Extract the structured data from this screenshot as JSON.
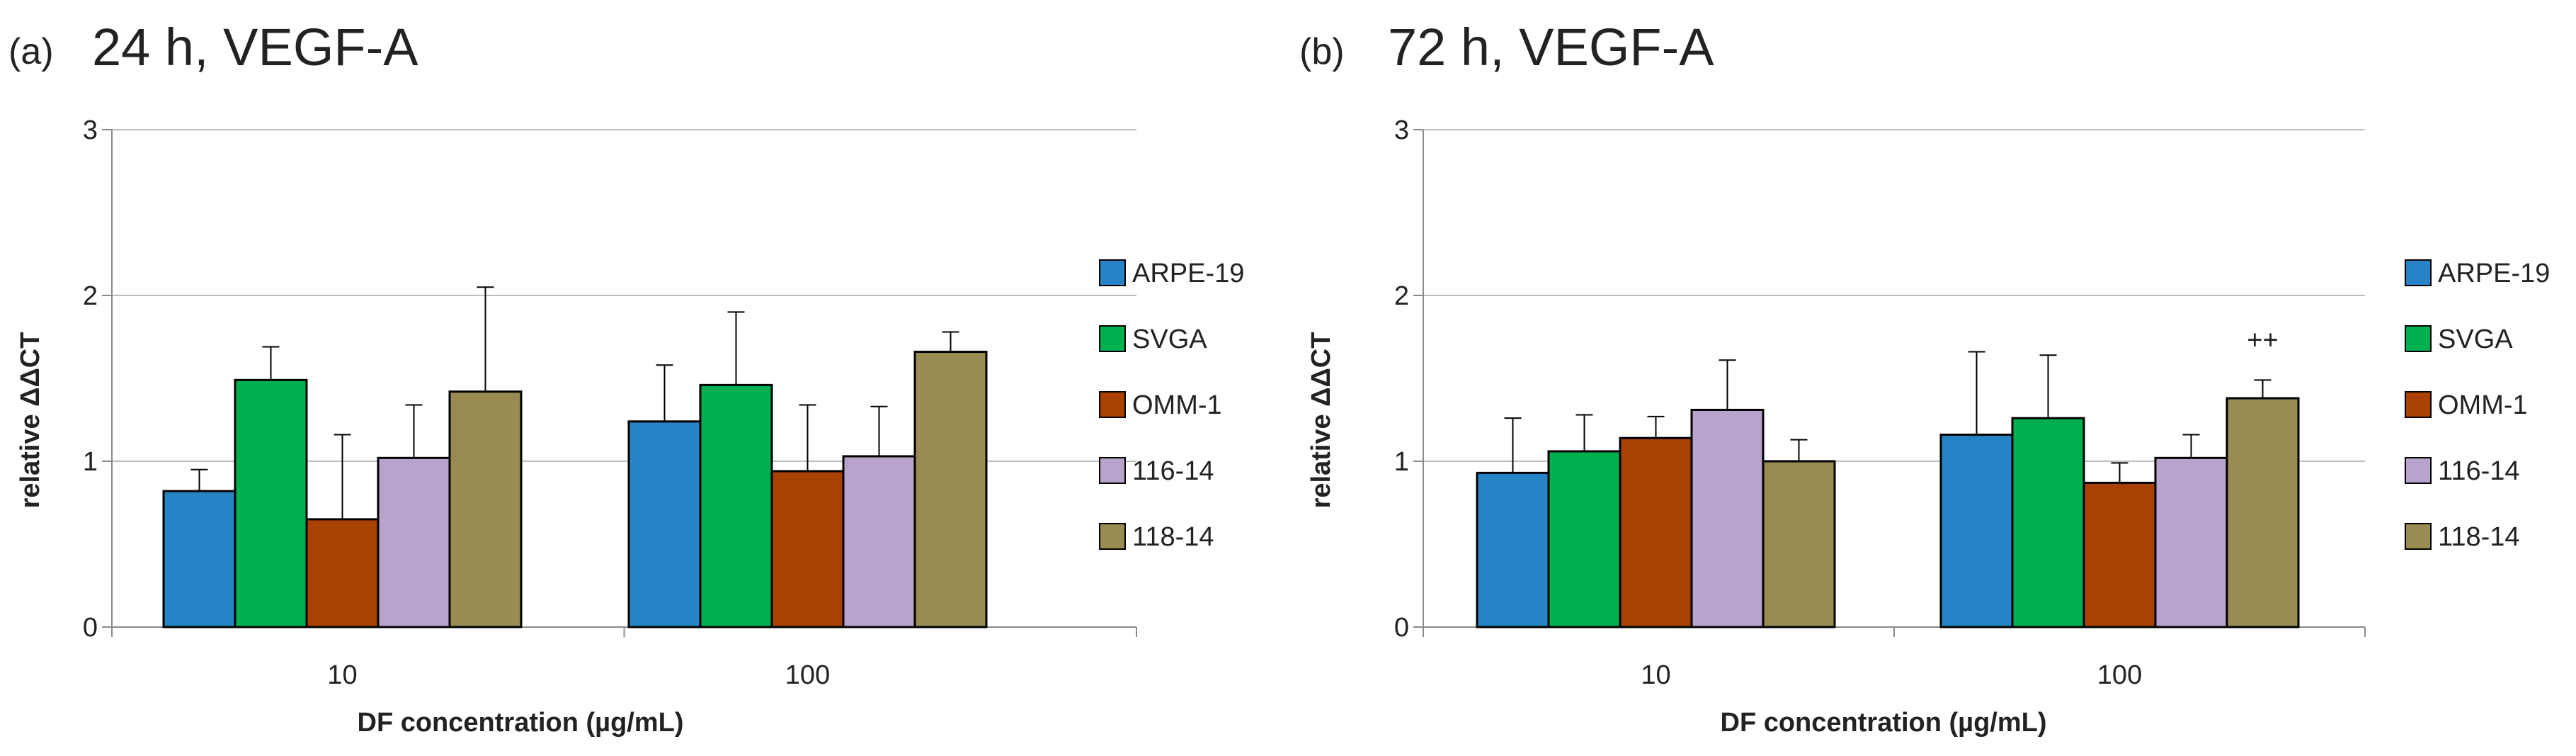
{
  "chart_data": [
    {
      "type": "bar",
      "panel_label": "(a)",
      "title": "24 h, VEGF-A",
      "xlabel": "DF concentration (µg/mL)",
      "ylabel": "relative ΔΔCT",
      "categories": [
        "10",
        "100"
      ],
      "ylim": [
        0,
        3
      ],
      "yticks": [
        0,
        1,
        2,
        3
      ],
      "grid": true,
      "legend_position": "right",
      "series": [
        {
          "name": "ARPE-19",
          "values": [
            0.82,
            1.24
          ],
          "errors": [
            0.13,
            0.34
          ]
        },
        {
          "name": "SVGA",
          "values": [
            1.49,
            1.46
          ],
          "errors": [
            0.2,
            0.44
          ]
        },
        {
          "name": "OMM-1",
          "values": [
            0.65,
            0.94
          ],
          "errors": [
            0.51,
            0.4
          ]
        },
        {
          "name": "116-14",
          "values": [
            1.02,
            1.03
          ],
          "errors": [
            0.32,
            0.3
          ]
        },
        {
          "name": "118-14",
          "values": [
            1.42,
            1.66
          ],
          "errors": [
            0.63,
            0.12
          ]
        }
      ],
      "annotations": []
    },
    {
      "type": "bar",
      "panel_label": "(b)",
      "title": "72 h, VEGF-A",
      "xlabel": "DF concentration (µg/mL)",
      "ylabel": "relative ΔΔCT",
      "categories": [
        "10",
        "100"
      ],
      "ylim": [
        0,
        3
      ],
      "yticks": [
        0,
        1,
        2,
        3
      ],
      "grid": true,
      "legend_position": "right",
      "series": [
        {
          "name": "ARPE-19",
          "values": [
            0.93,
            1.16
          ],
          "errors": [
            0.33,
            0.5
          ]
        },
        {
          "name": "SVGA",
          "values": [
            1.06,
            1.26
          ],
          "errors": [
            0.22,
            0.38
          ]
        },
        {
          "name": "OMM-1",
          "values": [
            1.14,
            0.87
          ],
          "errors": [
            0.13,
            0.12
          ]
        },
        {
          "name": "116-14",
          "values": [
            1.31,
            1.02
          ],
          "errors": [
            0.3,
            0.14
          ]
        },
        {
          "name": "118-14",
          "values": [
            1.0,
            1.38
          ],
          "errors": [
            0.13,
            0.11
          ]
        }
      ],
      "annotations": [
        {
          "text": "++",
          "category": "100",
          "series": "118-14"
        }
      ]
    }
  ],
  "colors": {
    "ARPE-19": "#2683c6",
    "SVGA": "#00b04f",
    "OMM-1": "#a94200",
    "116-14": "#b7a3cc",
    "118-14": "#988c52"
  }
}
